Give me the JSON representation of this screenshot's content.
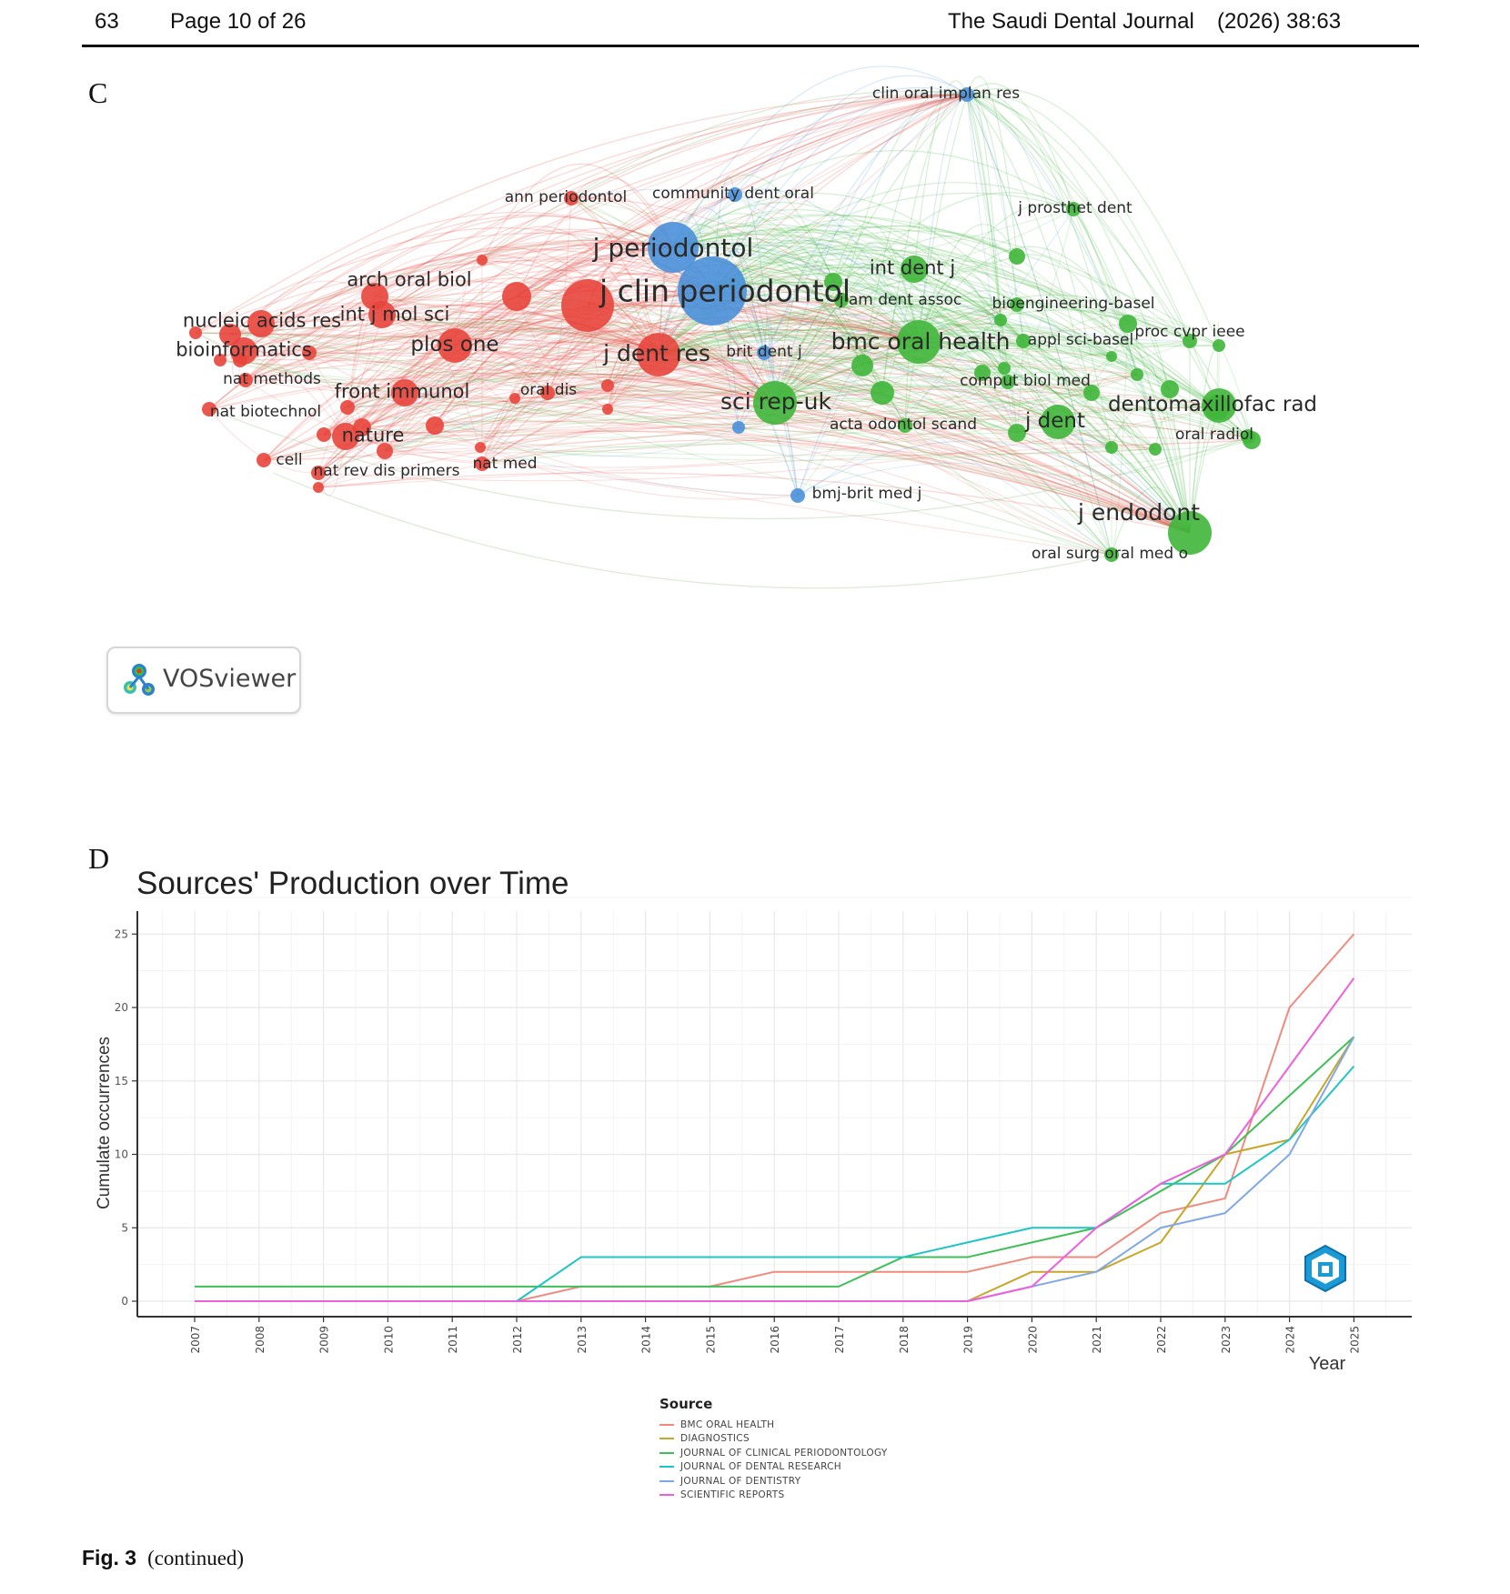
{
  "header": {
    "article_number": "63",
    "page_info": "Page 10 of 26",
    "journal": "The Saudi Dental Journal",
    "citation": "(2026) 38:63"
  },
  "panels": {
    "c_letter": "C",
    "d_letter": "D"
  },
  "network": {
    "software": "VOSviewer",
    "clusters": {
      "red": "#e8453c",
      "green": "#3fb63a",
      "blue": "#4a90d9"
    },
    "nodes": [
      {
        "label": "clin oral implan res",
        "cluster": "blue",
        "weight": 1
      },
      {
        "label": "ann periodontol",
        "cluster": "red",
        "weight": 1
      },
      {
        "label": "community dent oral",
        "cluster": "blue",
        "weight": 1
      },
      {
        "label": "j prosthet dent",
        "cluster": "green",
        "weight": 1
      },
      {
        "label": "j periodontol",
        "cluster": "blue",
        "weight": 5
      },
      {
        "label": "int dent j",
        "cluster": "green",
        "weight": 2
      },
      {
        "label": "arch oral biol",
        "cluster": "red",
        "weight": 2
      },
      {
        "label": "j clin periodontol",
        "cluster": "blue",
        "weight": 6
      },
      {
        "label": "j am dent assoc",
        "cluster": "green",
        "weight": 1
      },
      {
        "label": "bioengineering-basel",
        "cluster": "green",
        "weight": 1
      },
      {
        "label": "nucleic acids res",
        "cluster": "red",
        "weight": 2
      },
      {
        "label": "int j mol sci",
        "cluster": "red",
        "weight": 2
      },
      {
        "label": "proc cvpr ieee",
        "cluster": "green",
        "weight": 1
      },
      {
        "label": "bmc oral health",
        "cluster": "green",
        "weight": 4
      },
      {
        "label": "appl sci-basel",
        "cluster": "green",
        "weight": 1
      },
      {
        "label": "bioinformatics",
        "cluster": "red",
        "weight": 2
      },
      {
        "label": "plos one",
        "cluster": "red",
        "weight": 3
      },
      {
        "label": "j dent res",
        "cluster": "red",
        "weight": 4
      },
      {
        "label": "brit dent j",
        "cluster": "blue",
        "weight": 1
      },
      {
        "label": "nat methods",
        "cluster": "red",
        "weight": 1
      },
      {
        "label": "front immunol",
        "cluster": "red",
        "weight": 2
      },
      {
        "label": "oral dis",
        "cluster": "red",
        "weight": 1
      },
      {
        "label": "comput biol med",
        "cluster": "green",
        "weight": 1
      },
      {
        "label": "nat biotechnol",
        "cluster": "red",
        "weight": 1
      },
      {
        "label": "sci rep-uk",
        "cluster": "green",
        "weight": 4
      },
      {
        "label": "dentomaxillofac rad",
        "cluster": "green",
        "weight": 3
      },
      {
        "label": "acta odontol scand",
        "cluster": "green",
        "weight": 1
      },
      {
        "label": "j dent",
        "cluster": "green",
        "weight": 3
      },
      {
        "label": "oral radiol",
        "cluster": "green",
        "weight": 1
      },
      {
        "label": "nature",
        "cluster": "red",
        "weight": 2
      },
      {
        "label": "cell",
        "cluster": "red",
        "weight": 1
      },
      {
        "label": "nat rev dis primers",
        "cluster": "red",
        "weight": 1
      },
      {
        "label": "nat med",
        "cluster": "red",
        "weight": 1
      },
      {
        "label": "bmj-brit med j",
        "cluster": "blue",
        "weight": 1
      },
      {
        "label": "j endodont",
        "cluster": "green",
        "weight": 4
      },
      {
        "label": "oral surg oral med o",
        "cluster": "green",
        "weight": 1
      }
    ]
  },
  "chart": {
    "legend_title": "Source"
  },
  "chart_data": {
    "type": "line",
    "title": "Sources' Production over Time",
    "xlabel": "Year",
    "ylabel": "Cumulate occurrences",
    "x": [
      2007,
      2008,
      2009,
      2010,
      2011,
      2012,
      2013,
      2014,
      2015,
      2016,
      2017,
      2018,
      2019,
      2020,
      2021,
      2022,
      2023,
      2024,
      2025
    ],
    "xticks": [
      "2007",
      "2008",
      "2009",
      "2010",
      "2011",
      "2012",
      "2013",
      "2014",
      "2015",
      "2016",
      "2017",
      "2018",
      "2019",
      "2020",
      "2021",
      "2022",
      "2023",
      "2024",
      "2025"
    ],
    "yticks": [
      "0",
      "5",
      "10",
      "15",
      "20",
      "25"
    ],
    "ylim": [
      0,
      25
    ],
    "legend": "bottom",
    "grid": true,
    "series": [
      {
        "name": "BMC ORAL HEALTH",
        "color": "#f08a7e",
        "values": [
          0,
          0,
          0,
          0,
          0,
          0,
          1,
          1,
          1,
          2,
          2,
          2,
          2,
          3,
          3,
          6,
          7,
          20,
          25
        ]
      },
      {
        "name": "DIAGNOSTICS",
        "color": "#c7a629",
        "values": [
          0,
          0,
          0,
          0,
          0,
          0,
          0,
          0,
          0,
          0,
          0,
          0,
          0,
          2,
          2,
          4,
          10,
          11,
          18
        ]
      },
      {
        "name": "JOURNAL OF CLINICAL PERIODONTOLOGY",
        "color": "#3fbf57",
        "values": [
          1,
          1,
          1,
          1,
          1,
          1,
          1,
          1,
          1,
          1,
          1,
          3,
          3,
          4,
          5,
          null,
          10,
          14,
          18
        ]
      },
      {
        "name": "JOURNAL OF DENTAL RESEARCH",
        "color": "#1fc4c4",
        "values": [
          0,
          0,
          0,
          0,
          0,
          0,
          3,
          3,
          3,
          3,
          3,
          3,
          4,
          5,
          5,
          8,
          8,
          11,
          16
        ]
      },
      {
        "name": "JOURNAL OF DENTISTRY",
        "color": "#80a8e8",
        "values": [
          0,
          0,
          0,
          0,
          0,
          0,
          0,
          0,
          0,
          0,
          0,
          0,
          0,
          1,
          2,
          5,
          6,
          10,
          18
        ]
      },
      {
        "name": "SCIENTIFIC REPORTS",
        "color": "#ee5fe0",
        "values": [
          0,
          0,
          0,
          0,
          0,
          0,
          0,
          0,
          0,
          0,
          0,
          0,
          0,
          1,
          5,
          8,
          10,
          16,
          22
        ]
      }
    ]
  },
  "caption": {
    "label": "Fig. 3",
    "text": "(continued)"
  }
}
